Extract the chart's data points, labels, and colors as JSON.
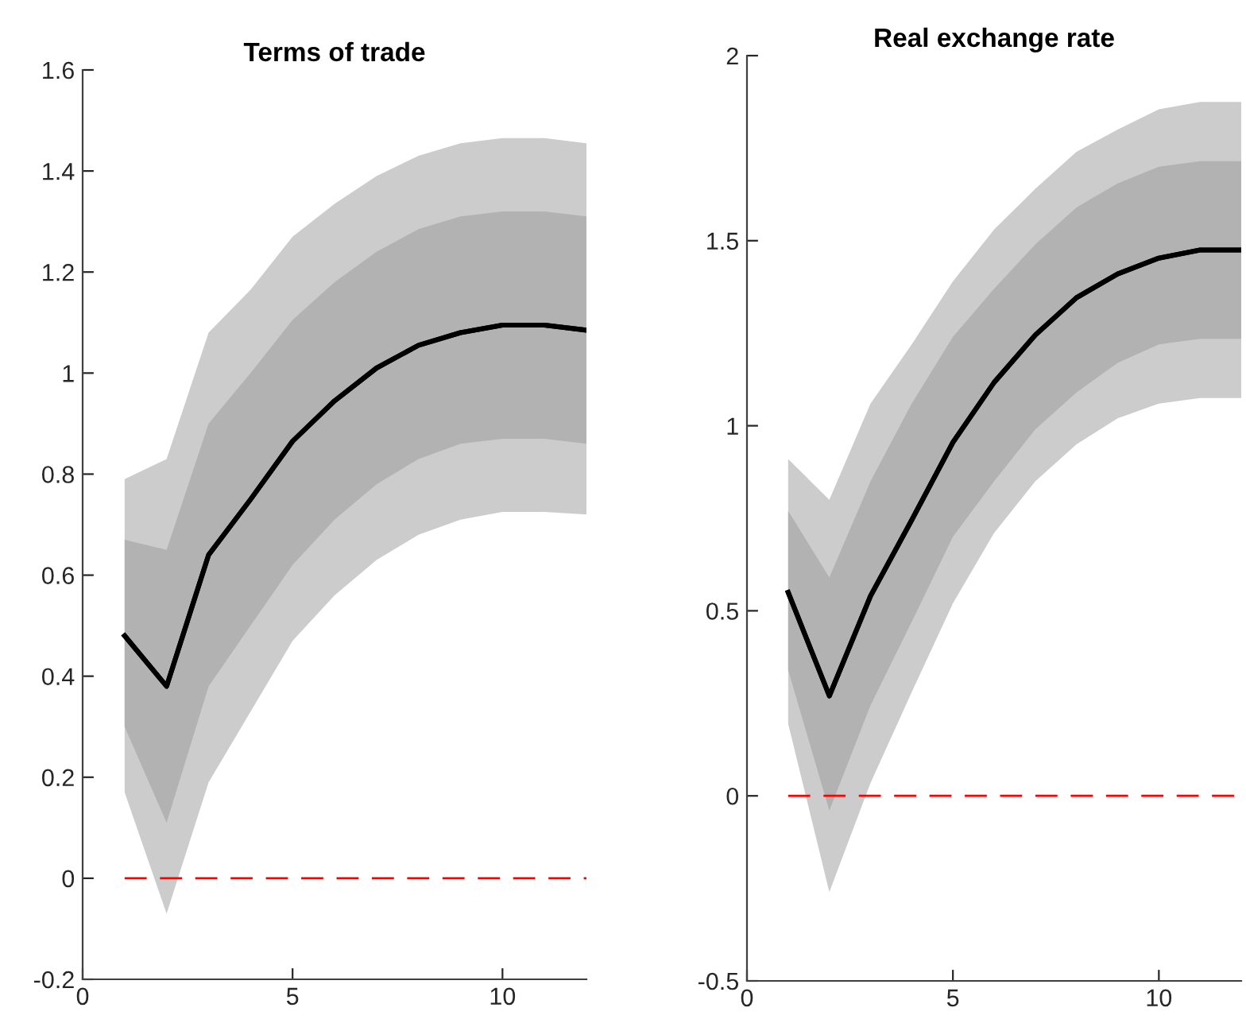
{
  "chart_data": [
    {
      "type": "line",
      "title": "Terms of trade",
      "x": [
        1,
        2,
        3,
        4,
        5,
        6,
        7,
        8,
        9,
        10,
        11,
        12
      ],
      "xlim": [
        0,
        12
      ],
      "xticks": [
        0,
        5,
        10
      ],
      "ylim": [
        -0.2,
        1.6
      ],
      "yticks": [
        {
          "value": -0.2,
          "label": "-0.2"
        },
        0,
        0.2,
        0.4,
        0.6,
        0.8,
        1,
        1.2,
        1.4,
        1.6
      ],
      "grid": false,
      "legend": false,
      "marker": "none",
      "line_style": "solid",
      "series": [
        {
          "type": "line",
          "color": "#000000",
          "values": [
            0.48,
            0.38,
            0.64,
            0.75,
            0.865,
            0.945,
            1.01,
            1.055,
            1.08,
            1.095,
            1.095,
            1.085
          ],
          "lower": [
            0.17,
            -0.07,
            0.19,
            0.33,
            0.47,
            0.56,
            0.63,
            0.68,
            0.71,
            0.725,
            0.725,
            0.72
          ],
          "upper": [
            0.79,
            0.83,
            1.08,
            1.165,
            1.27,
            1.335,
            1.39,
            1.43,
            1.455,
            1.465,
            1.465,
            1.455
          ]
        },
        {
          "type": "line",
          "color": "#000000",
          "values": [
            0.48,
            0.38,
            0.64,
            0.75,
            0.865,
            0.945,
            1.01,
            1.055,
            1.08,
            1.095,
            1.095,
            1.085
          ],
          "lower": [
            0.3,
            0.11,
            0.38,
            0.5,
            0.62,
            0.71,
            0.78,
            0.83,
            0.86,
            0.87,
            0.87,
            0.86
          ],
          "upper": [
            0.67,
            0.65,
            0.9,
            1.0,
            1.105,
            1.18,
            1.24,
            1.285,
            1.31,
            1.32,
            1.32,
            1.31
          ]
        }
      ],
      "ref_lines": [
        {
          "axis": "y",
          "value": 0,
          "color": "#ff0000",
          "line_style": "dashed"
        }
      ]
    },
    {
      "type": "line",
      "title": "Real exchange rate",
      "x": [
        1,
        2,
        3,
        4,
        5,
        6,
        7,
        8,
        9,
        10,
        11,
        12
      ],
      "xlim": [
        0,
        12
      ],
      "xticks": [
        0,
        5,
        10
      ],
      "ylim": [
        -0.5,
        2
      ],
      "yticks": [
        {
          "value": -0.5,
          "label": "-0.5"
        },
        0,
        0.5,
        1,
        1.5,
        2
      ],
      "grid": false,
      "legend": false,
      "marker": "none",
      "line_style": "solid",
      "series": [
        {
          "type": "line",
          "color": "#000000",
          "values": [
            0.55,
            0.27,
            0.54,
            0.745,
            0.955,
            1.117,
            1.245,
            1.346,
            1.41,
            1.453,
            1.475,
            1.475
          ],
          "lower": [
            0.195,
            -0.26,
            0.035,
            0.28,
            0.52,
            0.71,
            0.85,
            0.95,
            1.02,
            1.06,
            1.075,
            1.075
          ],
          "upper": [
            0.91,
            0.8,
            1.06,
            1.22,
            1.39,
            1.53,
            1.64,
            1.74,
            1.8,
            1.855,
            1.875,
            1.875
          ]
        },
        {
          "type": "line",
          "color": "#000000",
          "values": [
            0.55,
            0.27,
            0.54,
            0.745,
            0.955,
            1.117,
            1.245,
            1.346,
            1.41,
            1.453,
            1.475,
            1.475
          ],
          "lower": [
            0.34,
            -0.04,
            0.245,
            0.47,
            0.7,
            0.85,
            0.99,
            1.09,
            1.17,
            1.22,
            1.235,
            1.235
          ],
          "upper": [
            0.77,
            0.59,
            0.85,
            1.06,
            1.24,
            1.37,
            1.49,
            1.59,
            1.655,
            1.7,
            1.715,
            1.715
          ]
        }
      ],
      "ref_lines": [
        {
          "axis": "y",
          "value": 0,
          "color": "#ff0000",
          "line_style": "dashed"
        }
      ]
    }
  ]
}
